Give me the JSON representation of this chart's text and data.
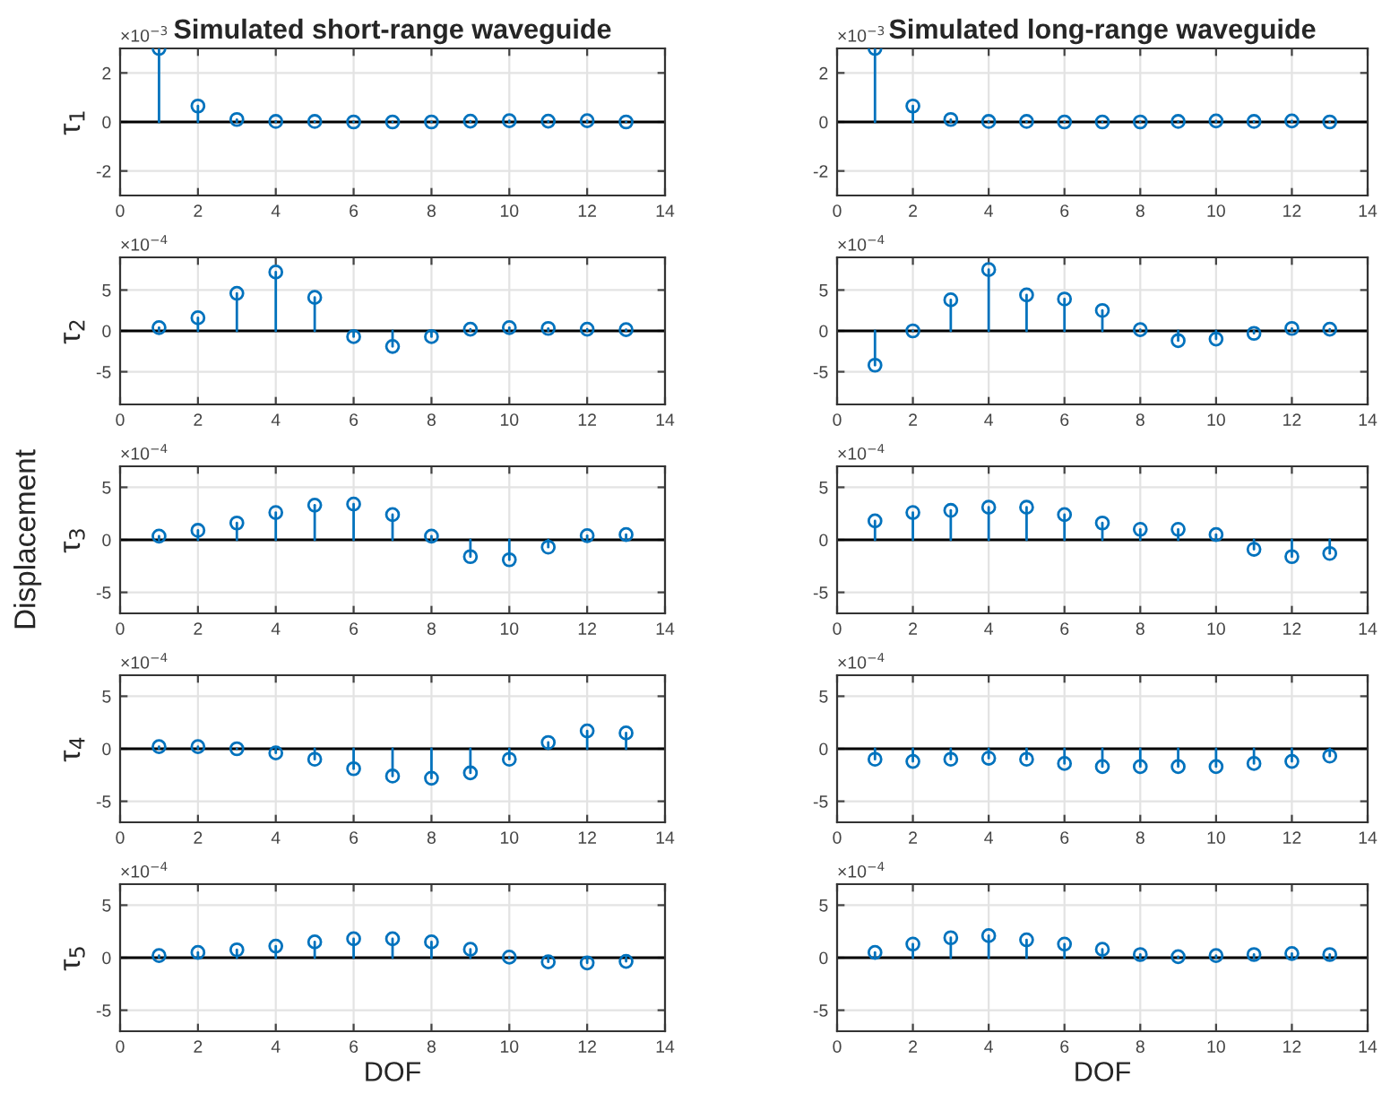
{
  "chart_data": [
    {
      "type": "lollipop",
      "title": "Simulated short-range waveguide",
      "ylabel": "τ$_{1}$",
      "annotations": [
        "×10$^{−3}$"
      ],
      "x": [
        1,
        2,
        3,
        4,
        5,
        6,
        7,
        8,
        9,
        10,
        11,
        12,
        13
      ],
      "values": [
        3.0,
        0.65,
        0.1,
        0.02,
        0.02,
        0,
        0,
        0,
        0.03,
        0.05,
        0.03,
        0.05,
        0
      ],
      "color": "#0072bd",
      "xlim": [
        0,
        14
      ],
      "xticks": [
        0,
        2,
        4,
        6,
        8,
        10,
        12,
        14
      ],
      "ylim": [
        -3,
        3
      ],
      "yticks": [
        -2,
        0,
        2
      ],
      "grid": true,
      "marker": "circle"
    },
    {
      "type": "lollipop",
      "title": "Simulated long-range waveguide",
      "annotations": [
        "×10$^{−3}$"
      ],
      "x": [
        1,
        2,
        3,
        4,
        5,
        6,
        7,
        8,
        9,
        10,
        11,
        12,
        13
      ],
      "values": [
        3.0,
        0.65,
        0.1,
        0.02,
        0.02,
        0,
        0,
        0,
        0.02,
        0.04,
        0.02,
        0.04,
        0
      ],
      "color": "#0072bd",
      "xlim": [
        0,
        14
      ],
      "xticks": [
        0,
        2,
        4,
        6,
        8,
        10,
        12,
        14
      ],
      "ylim": [
        -3,
        3
      ],
      "yticks": [
        -2,
        0,
        2
      ],
      "grid": true,
      "marker": "circle"
    },
    {
      "type": "lollipop",
      "ylabel": "τ$_{2}$",
      "annotations": [
        "×10$^{−4}$"
      ],
      "x": [
        1,
        2,
        3,
        4,
        5,
        6,
        7,
        8,
        9,
        10,
        11,
        12,
        13
      ],
      "values": [
        0.4,
        1.6,
        4.6,
        7.2,
        4.1,
        -0.7,
        -1.9,
        -0.7,
        0.2,
        0.4,
        0.3,
        0.2,
        0.15
      ],
      "color": "#0072bd",
      "xlim": [
        0,
        14
      ],
      "xticks": [
        0,
        2,
        4,
        6,
        8,
        10,
        12,
        14
      ],
      "ylim": [
        -9,
        9
      ],
      "yticks": [
        -5,
        0,
        5
      ],
      "grid": true,
      "marker": "circle"
    },
    {
      "type": "lollipop",
      "annotations": [
        "×10$^{−4}$"
      ],
      "x": [
        1,
        2,
        3,
        4,
        5,
        6,
        7,
        8,
        9,
        10,
        11,
        12,
        13
      ],
      "values": [
        -4.2,
        0,
        3.8,
        7.5,
        4.4,
        3.9,
        2.5,
        0.15,
        -1.2,
        -1.0,
        -0.3,
        0.3,
        0.2
      ],
      "color": "#0072bd",
      "xlim": [
        0,
        14
      ],
      "xticks": [
        0,
        2,
        4,
        6,
        8,
        10,
        12,
        14
      ],
      "ylim": [
        -9,
        9
      ],
      "yticks": [
        -5,
        0,
        5
      ],
      "grid": true,
      "marker": "circle"
    },
    {
      "type": "lollipop",
      "ylabel": "τ$_{3}$",
      "annotations": [
        "×10$^{−4}$",
        "Displacement"
      ],
      "x": [
        1,
        2,
        3,
        4,
        5,
        6,
        7,
        8,
        9,
        10,
        11,
        12,
        13
      ],
      "values": [
        0.35,
        0.9,
        1.6,
        2.6,
        3.3,
        3.4,
        2.4,
        0.35,
        -1.6,
        -1.9,
        -0.7,
        0.4,
        0.5
      ],
      "color": "#0072bd",
      "xlim": [
        0,
        14
      ],
      "xticks": [
        0,
        2,
        4,
        6,
        8,
        10,
        12,
        14
      ],
      "ylim": [
        -7,
        7
      ],
      "yticks": [
        -5,
        0,
        5
      ],
      "grid": true,
      "marker": "circle"
    },
    {
      "type": "lollipop",
      "annotations": [
        "×10$^{−4}$"
      ],
      "x": [
        1,
        2,
        3,
        4,
        5,
        6,
        7,
        8,
        9,
        10,
        11,
        12,
        13
      ],
      "values": [
        1.8,
        2.6,
        2.8,
        3.1,
        3.1,
        2.4,
        1.6,
        1.0,
        1.0,
        0.5,
        -0.9,
        -1.6,
        -1.3
      ],
      "color": "#0072bd",
      "xlim": [
        0,
        14
      ],
      "xticks": [
        0,
        2,
        4,
        6,
        8,
        10,
        12,
        14
      ],
      "ylim": [
        -7,
        7
      ],
      "yticks": [
        -5,
        0,
        5
      ],
      "grid": true,
      "marker": "circle"
    },
    {
      "type": "lollipop",
      "ylabel": "τ$_{4}$",
      "annotations": [
        "×10$^{−4}$"
      ],
      "x": [
        1,
        2,
        3,
        4,
        5,
        6,
        7,
        8,
        9,
        10,
        11,
        12,
        13
      ],
      "values": [
        0.2,
        0.2,
        0,
        -0.4,
        -1.0,
        -1.9,
        -2.6,
        -2.8,
        -2.3,
        -1.0,
        0.6,
        1.7,
        1.5
      ],
      "color": "#0072bd",
      "xlim": [
        0,
        14
      ],
      "xticks": [
        0,
        2,
        4,
        6,
        8,
        10,
        12,
        14
      ],
      "ylim": [
        -7,
        7
      ],
      "yticks": [
        -5,
        0,
        5
      ],
      "grid": true,
      "marker": "circle"
    },
    {
      "type": "lollipop",
      "annotations": [
        "×10$^{−4}$"
      ],
      "x": [
        1,
        2,
        3,
        4,
        5,
        6,
        7,
        8,
        9,
        10,
        11,
        12,
        13
      ],
      "values": [
        -1.0,
        -1.2,
        -1.0,
        -0.9,
        -1.0,
        -1.4,
        -1.7,
        -1.7,
        -1.7,
        -1.7,
        -1.4,
        -1.2,
        -0.7
      ],
      "color": "#0072bd",
      "xlim": [
        0,
        14
      ],
      "xticks": [
        0,
        2,
        4,
        6,
        8,
        10,
        12,
        14
      ],
      "ylim": [
        -7,
        7
      ],
      "yticks": [
        -5,
        0,
        5
      ],
      "grid": true,
      "marker": "circle"
    },
    {
      "type": "lollipop",
      "ylabel": "τ$_{5}$",
      "xlabel": "DOF",
      "annotations": [
        "×10$^{−4}$"
      ],
      "x": [
        1,
        2,
        3,
        4,
        5,
        6,
        7,
        8,
        9,
        10,
        11,
        12,
        13
      ],
      "values": [
        0.2,
        0.5,
        0.75,
        1.1,
        1.5,
        1.8,
        1.8,
        1.5,
        0.8,
        0.05,
        -0.4,
        -0.5,
        -0.35
      ],
      "color": "#0072bd",
      "xlim": [
        0,
        14
      ],
      "xticks": [
        0,
        2,
        4,
        6,
        8,
        10,
        12,
        14
      ],
      "ylim": [
        -7,
        7
      ],
      "yticks": [
        -5,
        0,
        5
      ],
      "grid": true,
      "marker": "circle"
    },
    {
      "type": "lollipop",
      "xlabel": "DOF",
      "annotations": [
        "×10$^{−4}$"
      ],
      "x": [
        1,
        2,
        3,
        4,
        5,
        6,
        7,
        8,
        9,
        10,
        11,
        12,
        13
      ],
      "values": [
        0.5,
        1.3,
        1.9,
        2.1,
        1.7,
        1.3,
        0.8,
        0.3,
        0.1,
        0.2,
        0.3,
        0.4,
        0.3
      ],
      "color": "#0072bd",
      "xlim": [
        0,
        14
      ],
      "xticks": [
        0,
        2,
        4,
        6,
        8,
        10,
        12,
        14
      ],
      "ylim": [
        -7,
        7
      ],
      "yticks": [
        -5,
        0,
        5
      ],
      "grid": true,
      "marker": "circle"
    }
  ]
}
